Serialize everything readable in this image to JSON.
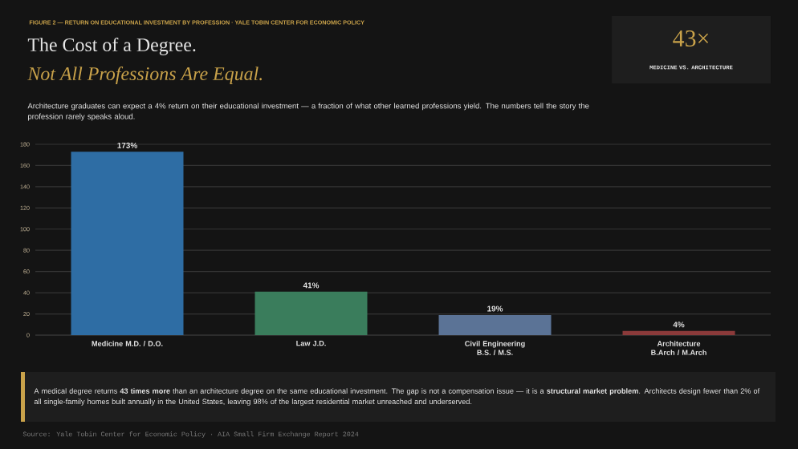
{
  "chart_data": {
    "type": "bar",
    "title": "The Cost of a Degree.",
    "subtitle": "Not All Professions Are Equal.",
    "annotations": [
      "FIGURE 2 — RETURN ON EDUCATIONAL INVESTMENT BY PROFESSION · YALE TOBIN CENTER FOR ECONOMIC POLICY",
      "Architecture graduates can expect a 4% return on their educational investment — a fraction of what other learned professions yield. The numbers tell the story the profession rarely speaks aloud.",
      "43×",
      "MEDICINE VS. ARCHITECTURE",
      "A medical degree returns **43 times more** than an architecture degree on the same educational investment. The gap is not a compensation issue — it is a **structural market problem**. Architects design fewer than 2% of all single-family homes built annually in the United States, leaving 98% of the largest residential market unreached and underserved.",
      "Source: Yale Tobin Center for Economic Policy · AIA Small Firm Exchange Report 2024"
    ],
    "categories": [
      "Medicine M.D. / D.O.",
      "Law J.D.",
      "Civil Engineering B.S. / M.S.",
      "Architecture B.Arch / M.Arch"
    ],
    "values": [
      173,
      41,
      19,
      4
    ],
    "value_labels": [
      "173%",
      "41%",
      "19%",
      "4%"
    ],
    "colors": [
      "#2e6da4",
      "#3a7d5c",
      "#5b7396",
      "#8b3a3a"
    ],
    "ylim": [
      0,
      180
    ],
    "yticks": [
      0,
      20,
      40,
      60,
      80,
      100,
      120,
      140,
      160,
      180
    ],
    "grid": "y"
  }
}
